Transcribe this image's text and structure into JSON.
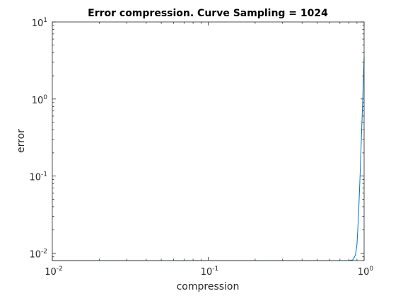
{
  "chart_data": {
    "type": "line",
    "title": "Error compression. Curve Sampling = 1024",
    "xlabel": "compression",
    "ylabel": "error",
    "xscale": "log",
    "yscale": "log",
    "xlim": [
      0.01,
      1
    ],
    "ylim": [
      0.008,
      10
    ],
    "x_ticks": [
      {
        "value": 0.01,
        "base": "10",
        "exp": "-2"
      },
      {
        "value": 0.1,
        "base": "10",
        "exp": "-1"
      },
      {
        "value": 1,
        "base": "10",
        "exp": "0"
      }
    ],
    "y_ticks": [
      {
        "value": 0.01,
        "base": "10",
        "exp": "-2"
      },
      {
        "value": 0.1,
        "base": "10",
        "exp": "-1"
      },
      {
        "value": 1,
        "base": "10",
        "exp": "0"
      },
      {
        "value": 10,
        "base": "10",
        "exp": "1"
      }
    ],
    "grid": false,
    "box": true,
    "series": [
      {
        "color": "#0072bd",
        "x": [
          0.01,
          0.1,
          0.5,
          0.8,
          0.85,
          0.88,
          0.9,
          0.92,
          0.94,
          0.96,
          0.98,
          1.0
        ],
        "y": [
          0.008,
          0.008,
          0.008,
          0.008,
          0.0082,
          0.0095,
          0.013,
          0.03,
          0.09,
          0.3,
          1.0,
          3.5
        ]
      }
    ]
  }
}
